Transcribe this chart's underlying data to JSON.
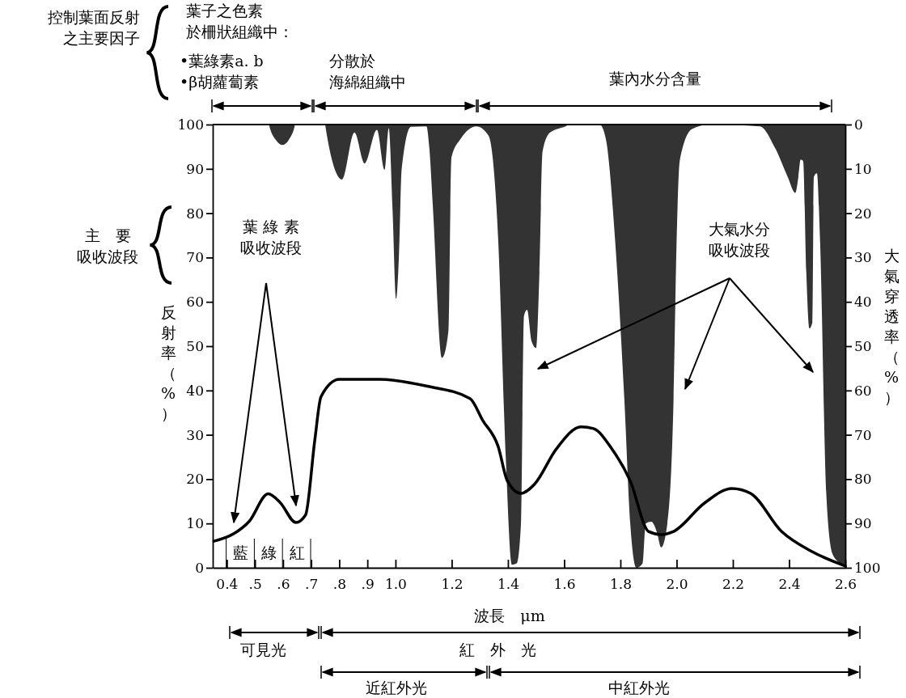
{
  "chart_data": {
    "type": "line",
    "xlabel": "波長　μm",
    "ylabel": "反射率（%）",
    "y2label": "大氣穿透率（%）",
    "xlim": [
      0.35,
      2.6
    ],
    "xticks": [
      0.4,
      {
        "value": 0.5,
        "label": ".5"
      },
      {
        "value": 0.6,
        "label": ".6"
      },
      {
        "value": 0.7,
        "label": ".7"
      },
      {
        "value": 0.8,
        "label": ".8"
      },
      {
        "value": 0.9,
        "label": ".9"
      },
      {
        "value": 1,
        "label": "1.0"
      },
      1.2,
      1.4,
      1.6,
      1.8,
      {
        "value": 2,
        "label": "2.0"
      },
      2.2,
      2.4,
      2.6
    ],
    "ylim": [
      0,
      100
    ],
    "yticks": [
      0,
      10,
      20,
      30,
      40,
      50,
      60,
      70,
      80,
      90,
      100
    ],
    "y2lim": [
      100,
      0
    ],
    "y2ticks": [
      0,
      10,
      20,
      30,
      40,
      50,
      60,
      70,
      80,
      90,
      100
    ],
    "grid": false,
    "series": [
      {
        "type": "area",
        "axis": "y2",
        "color": "#333333",
        "x": [
          0.35,
          0.55,
          0.552,
          0.575,
          0.597,
          0.62,
          0.641,
          0.643,
          0.75,
          0.751,
          0.81,
          0.854,
          0.89,
          0.934,
          0.961,
          0.976,
          0.99,
          1.002,
          1.012,
          1.022,
          1.055,
          1.11,
          1.12,
          1.133,
          1.166,
          1.188,
          1.199,
          1.232,
          1.288,
          1.331,
          1.365,
          1.392,
          1.414,
          1.431,
          1.446,
          1.457,
          1.468,
          1.484,
          1.5,
          1.512,
          1.523,
          1.55,
          1.605,
          1.62,
          1.726,
          1.748,
          1.781,
          1.814,
          1.835,
          1.857,
          1.879,
          1.89,
          1.91,
          1.93,
          1.945,
          1.967,
          1.989,
          2.0,
          2.011,
          2.055,
          2.12,
          2.296,
          2.351,
          2.395,
          2.422,
          2.433,
          2.441,
          2.45,
          2.461,
          2.472,
          2.483,
          2.488,
          2.499,
          2.51,
          2.532,
          2.554,
          2.581,
          2.6
        ],
        "values": [
          0,
          0,
          0.5,
          3.5,
          4.6,
          3.5,
          0.5,
          0,
          0,
          0.5,
          12.4,
          1.8,
          8.8,
          1.2,
          10.2,
          0.8,
          20,
          39.3,
          30,
          10,
          0.5,
          0.4,
          5,
          18.6,
          52.6,
          46.7,
          7.4,
          3.2,
          0.4,
          2.5,
          25.6,
          74.7,
          99.3,
          99,
          90.4,
          43.2,
          41.8,
          48.9,
          50.4,
          33.2,
          6.1,
          1.8,
          0.4,
          0,
          0,
          3.2,
          26,
          62,
          90,
          100,
          99,
          90,
          89.6,
          92,
          95.4,
          90,
          62,
          26,
          8.2,
          1,
          0,
          0.4,
          5.4,
          11.8,
          15.4,
          11.8,
          7.9,
          8.2,
          33,
          46,
          44.6,
          11.8,
          11,
          26,
          83,
          96.8,
          99,
          100
        ]
      },
      {
        "color": "#000000",
        "x": [
          0.354,
          0.425,
          0.48,
          0.547,
          0.59,
          0.646,
          0.68,
          0.713,
          0.735,
          0.8,
          0.945,
          1.11,
          1.265,
          1.31,
          1.365,
          1.398,
          1.446,
          1.495,
          1.572,
          1.66,
          1.704,
          1.77,
          1.835,
          1.9,
          1.945,
          1.989,
          2.099,
          2.197,
          2.263,
          2.373,
          2.483,
          2.6
        ],
        "values": [
          6,
          7.7,
          10.5,
          16.7,
          14.7,
          10.2,
          11.9,
          28.8,
          38.6,
          42.5,
          42.5,
          41,
          38.2,
          33.3,
          27.4,
          19.6,
          16.8,
          18.9,
          26.8,
          31.8,
          31.4,
          26.8,
          19.6,
          8.2,
          7.5,
          8.2,
          14.6,
          17.9,
          16.8,
          8.2,
          3.6,
          0.4
        ]
      }
    ],
    "annotations": [
      "控制葉面反射",
      "之主要因子",
      "葉子之色素",
      "於柵狀組織中：",
      "•葉綠素a. b",
      "•β胡蘿蔔素",
      "分散於",
      "海綿組織中",
      "葉內水分含量",
      "主　要",
      "吸收波段",
      "葉 綠 素",
      "吸收波段",
      "大氣水分",
      "吸收波段",
      "藍",
      "綠",
      "紅",
      "可見光",
      "紅　外　光",
      "近紅外光",
      "中紅外光"
    ]
  }
}
